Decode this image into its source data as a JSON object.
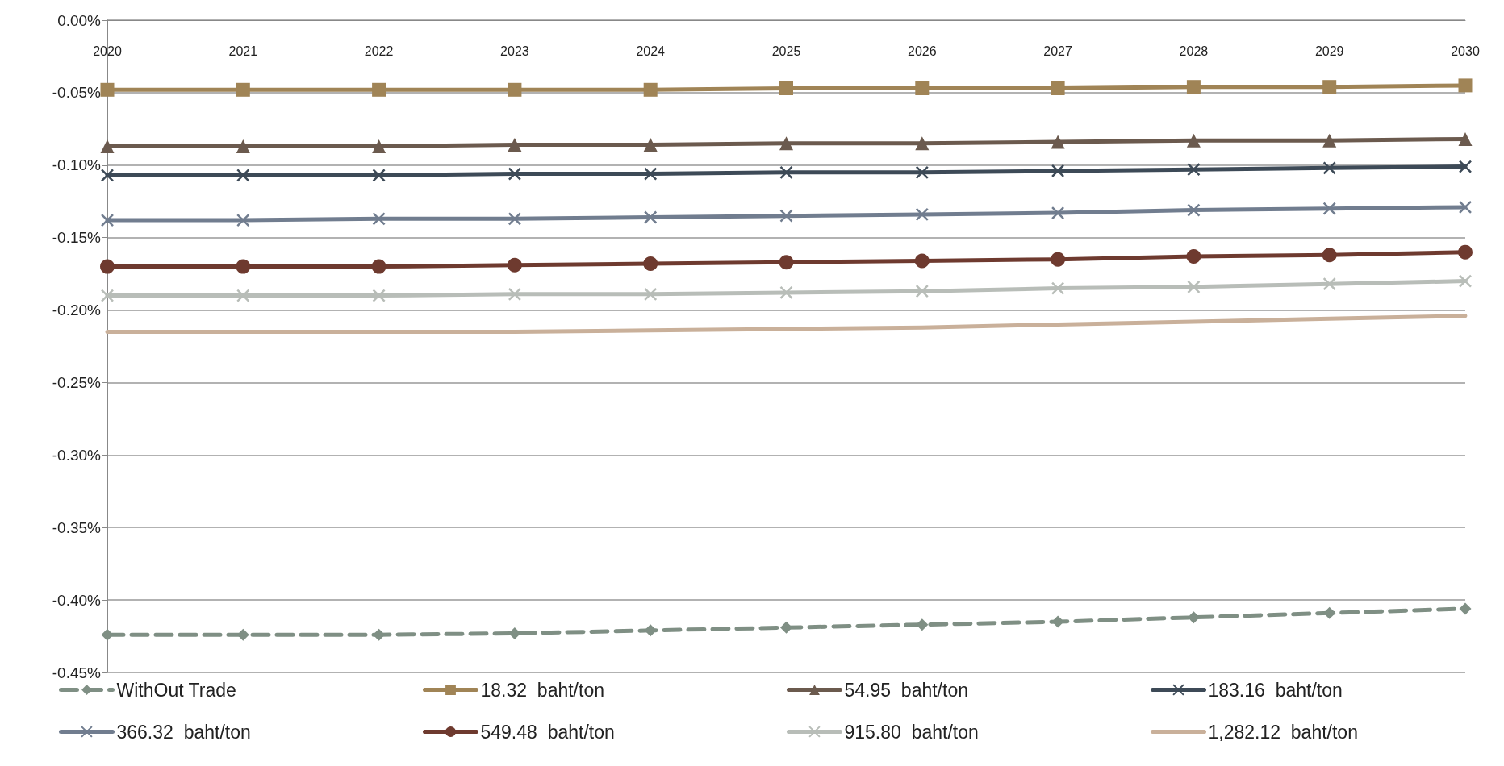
{
  "chart_data": {
    "type": "line",
    "categories": [
      "2020",
      "2021",
      "2022",
      "2023",
      "2024",
      "2025",
      "2026",
      "2027",
      "2028",
      "2029",
      "2030"
    ],
    "ylim": [
      -0.45,
      0
    ],
    "yticks": [
      {
        "value": -0.45,
        "label": "-0.45%"
      },
      {
        "value": -0.4,
        "label": "-0.40%"
      },
      {
        "value": -0.35,
        "label": "-0.35%"
      },
      {
        "value": -0.3,
        "label": "-0.30%"
      },
      {
        "value": -0.25,
        "label": "-0.25%"
      },
      {
        "value": -0.2,
        "label": "-0.20%"
      },
      {
        "value": -0.15,
        "label": "-0.15%"
      },
      {
        "value": -0.1,
        "label": "-0.10%"
      },
      {
        "value": -0.05,
        "label": "-0.05%"
      },
      {
        "value": 0,
        "label": "0.00%"
      }
    ],
    "grid": "y",
    "legend": "bottom",
    "series": [
      {
        "name": "WithOut Trade",
        "color": "#7f8f84",
        "marker": "diamond",
        "line_style": "dashed",
        "values": [
          -0.424,
          -0.424,
          -0.424,
          -0.423,
          -0.421,
          -0.419,
          -0.417,
          -0.415,
          -0.412,
          -0.409,
          -0.406
        ]
      },
      {
        "name": "18.32  baht/ton",
        "color": "#a08456",
        "marker": "square",
        "line_style": "solid",
        "values": [
          -0.048,
          -0.048,
          -0.048,
          -0.048,
          -0.048,
          -0.047,
          -0.047,
          -0.047,
          -0.046,
          -0.046,
          -0.045
        ]
      },
      {
        "name": "54.95  baht/ton",
        "color": "#6b5a4e",
        "marker": "triangle",
        "line_style": "solid",
        "values": [
          -0.087,
          -0.087,
          -0.087,
          -0.086,
          -0.086,
          -0.085,
          -0.085,
          -0.084,
          -0.083,
          -0.083,
          -0.082
        ]
      },
      {
        "name": "183.16  baht/ton",
        "color": "#3d4a57",
        "marker": "cross",
        "line_style": "solid",
        "values": [
          -0.107,
          -0.107,
          -0.107,
          -0.106,
          -0.106,
          -0.105,
          -0.105,
          -0.104,
          -0.103,
          -0.102,
          -0.101
        ]
      },
      {
        "name": "366.32  baht/ton",
        "color": "#717d8f",
        "marker": "cross",
        "line_style": "solid",
        "values": [
          -0.138,
          -0.138,
          -0.137,
          -0.137,
          -0.136,
          -0.135,
          -0.134,
          -0.133,
          -0.131,
          -0.13,
          -0.129
        ]
      },
      {
        "name": "549.48  baht/ton",
        "color": "#6e3a2f",
        "marker": "circle",
        "line_style": "solid",
        "values": [
          -0.17,
          -0.17,
          -0.17,
          -0.169,
          -0.168,
          -0.167,
          -0.166,
          -0.165,
          -0.163,
          -0.162,
          -0.16
        ]
      },
      {
        "name": "915.80  baht/ton",
        "color": "#b8bdb8",
        "marker": "cross",
        "line_style": "solid",
        "values": [
          -0.19,
          -0.19,
          -0.19,
          -0.189,
          -0.189,
          -0.188,
          -0.187,
          -0.185,
          -0.184,
          -0.182,
          -0.18
        ]
      },
      {
        "name": "1,282.12  baht/ton",
        "color": "#c9b09a",
        "marker": "none",
        "line_style": "solid",
        "values": [
          -0.215,
          -0.215,
          -0.215,
          -0.215,
          -0.214,
          -0.213,
          -0.212,
          -0.21,
          -0.208,
          -0.206,
          -0.204
        ]
      }
    ]
  }
}
